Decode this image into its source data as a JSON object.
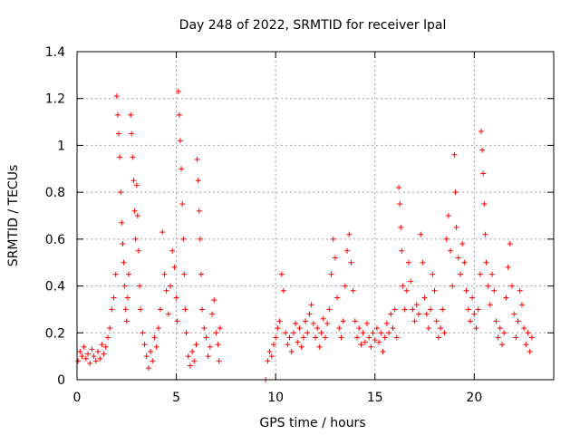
{
  "chart_data": {
    "type": "scatter",
    "title": "Day 248 of 2022, SRMTID for receiver lpal",
    "xlabel": "GPS time / hours",
    "ylabel": "SRMTID / TECUs",
    "xlim": [
      0,
      24
    ],
    "ylim": [
      0,
      1.4
    ],
    "xticks": [
      0,
      5,
      10,
      15,
      20
    ],
    "yticks": [
      0,
      0.2,
      0.4,
      0.6,
      0.8,
      1,
      1.2,
      1.4
    ],
    "xtick_labels": [
      "0",
      "5",
      "10",
      "15",
      "20"
    ],
    "ytick_labels": [
      "0",
      "0.2",
      "0.4",
      "0.6",
      "0.8",
      "1",
      "1.2",
      "1.4"
    ],
    "grid": true,
    "marker": "plus",
    "series": [
      {
        "name": "SRMTID",
        "color": "#ff0000",
        "points": [
          [
            0.05,
            0.08
          ],
          [
            0.15,
            0.12
          ],
          [
            0.25,
            0.1
          ],
          [
            0.35,
            0.14
          ],
          [
            0.45,
            0.09
          ],
          [
            0.55,
            0.11
          ],
          [
            0.65,
            0.07
          ],
          [
            0.75,
            0.13
          ],
          [
            0.85,
            0.1
          ],
          [
            0.95,
            0.08
          ],
          [
            1.05,
            0.12
          ],
          [
            1.15,
            0.09
          ],
          [
            1.25,
            0.15
          ],
          [
            1.35,
            0.11
          ],
          [
            1.45,
            0.14
          ],
          [
            1.55,
            0.18
          ],
          [
            1.65,
            0.22
          ],
          [
            1.75,
            0.3
          ],
          [
            1.85,
            0.35
          ],
          [
            1.95,
            0.45
          ],
          [
            2.0,
            1.21
          ],
          [
            2.05,
            1.13
          ],
          [
            2.1,
            1.05
          ],
          [
            2.15,
            0.95
          ],
          [
            2.2,
            0.8
          ],
          [
            2.25,
            0.67
          ],
          [
            2.3,
            0.58
          ],
          [
            2.35,
            0.5
          ],
          [
            2.4,
            0.4
          ],
          [
            2.45,
            0.3
          ],
          [
            2.5,
            0.25
          ],
          [
            2.55,
            0.35
          ],
          [
            2.6,
            0.45
          ],
          [
            2.7,
            1.13
          ],
          [
            2.75,
            1.05
          ],
          [
            2.8,
            0.95
          ],
          [
            2.85,
            0.85
          ],
          [
            2.9,
            0.72
          ],
          [
            2.95,
            0.6
          ],
          [
            3.0,
            0.83
          ],
          [
            3.05,
            0.7
          ],
          [
            3.1,
            0.55
          ],
          [
            3.15,
            0.4
          ],
          [
            3.2,
            0.3
          ],
          [
            3.3,
            0.2
          ],
          [
            3.4,
            0.15
          ],
          [
            3.5,
            0.1
          ],
          [
            3.6,
            0.05
          ],
          [
            3.7,
            0.12
          ],
          [
            3.8,
            0.08
          ],
          [
            3.9,
            0.18
          ],
          [
            4.0,
            0.14
          ],
          [
            4.1,
            0.22
          ],
          [
            4.2,
            0.3
          ],
          [
            4.3,
            0.63
          ],
          [
            4.4,
            0.45
          ],
          [
            4.5,
            0.38
          ],
          [
            4.6,
            0.28
          ],
          [
            4.7,
            0.4
          ],
          [
            4.8,
            0.55
          ],
          [
            4.9,
            0.48
          ],
          [
            5.0,
            0.35
          ],
          [
            5.05,
            0.25
          ],
          [
            5.1,
            1.23
          ],
          [
            5.15,
            1.13
          ],
          [
            5.2,
            1.02
          ],
          [
            5.25,
            0.9
          ],
          [
            5.3,
            0.75
          ],
          [
            5.35,
            0.6
          ],
          [
            5.4,
            0.45
          ],
          [
            5.45,
            0.3
          ],
          [
            5.5,
            0.2
          ],
          [
            5.6,
            0.1
          ],
          [
            5.7,
            0.06
          ],
          [
            5.8,
            0.12
          ],
          [
            5.9,
            0.08
          ],
          [
            6.0,
            0.15
          ],
          [
            6.05,
            0.94
          ],
          [
            6.1,
            0.85
          ],
          [
            6.15,
            0.72
          ],
          [
            6.2,
            0.6
          ],
          [
            6.25,
            0.45
          ],
          [
            6.3,
            0.3
          ],
          [
            6.4,
            0.22
          ],
          [
            6.5,
            0.18
          ],
          [
            6.6,
            0.1
          ],
          [
            6.7,
            0.14
          ],
          [
            6.8,
            0.28
          ],
          [
            6.9,
            0.34
          ],
          [
            7.0,
            0.2
          ],
          [
            7.1,
            0.15
          ],
          [
            7.15,
            0.08
          ],
          [
            7.2,
            0.22
          ],
          [
            9.5,
            0.0
          ],
          [
            9.6,
            0.08
          ],
          [
            9.7,
            0.12
          ],
          [
            9.8,
            0.1
          ],
          [
            9.9,
            0.15
          ],
          [
            10.0,
            0.18
          ],
          [
            10.1,
            0.22
          ],
          [
            10.2,
            0.25
          ],
          [
            10.3,
            0.45
          ],
          [
            10.4,
            0.38
          ],
          [
            10.5,
            0.2
          ],
          [
            10.6,
            0.15
          ],
          [
            10.7,
            0.18
          ],
          [
            10.8,
            0.12
          ],
          [
            10.9,
            0.2
          ],
          [
            11.0,
            0.24
          ],
          [
            11.1,
            0.16
          ],
          [
            11.2,
            0.22
          ],
          [
            11.3,
            0.14
          ],
          [
            11.4,
            0.18
          ],
          [
            11.5,
            0.25
          ],
          [
            11.6,
            0.2
          ],
          [
            11.7,
            0.28
          ],
          [
            11.8,
            0.32
          ],
          [
            11.9,
            0.24
          ],
          [
            12.0,
            0.18
          ],
          [
            12.1,
            0.22
          ],
          [
            12.2,
            0.14
          ],
          [
            12.3,
            0.2
          ],
          [
            12.4,
            0.26
          ],
          [
            12.5,
            0.18
          ],
          [
            12.6,
            0.24
          ],
          [
            12.7,
            0.3
          ],
          [
            12.8,
            0.45
          ],
          [
            12.9,
            0.6
          ],
          [
            13.0,
            0.52
          ],
          [
            13.1,
            0.35
          ],
          [
            13.2,
            0.22
          ],
          [
            13.3,
            0.18
          ],
          [
            13.4,
            0.25
          ],
          [
            13.5,
            0.4
          ],
          [
            13.6,
            0.55
          ],
          [
            13.7,
            0.62
          ],
          [
            13.8,
            0.5
          ],
          [
            13.9,
            0.38
          ],
          [
            14.0,
            0.25
          ],
          [
            14.1,
            0.18
          ],
          [
            14.2,
            0.22
          ],
          [
            14.3,
            0.15
          ],
          [
            14.4,
            0.2
          ],
          [
            14.5,
            0.16
          ],
          [
            14.6,
            0.24
          ],
          [
            14.7,
            0.18
          ],
          [
            14.8,
            0.14
          ],
          [
            14.9,
            0.2
          ],
          [
            15.0,
            0.17
          ],
          [
            15.1,
            0.22
          ],
          [
            15.2,
            0.16
          ],
          [
            15.3,
            0.2
          ],
          [
            15.4,
            0.12
          ],
          [
            15.5,
            0.18
          ],
          [
            15.6,
            0.24
          ],
          [
            15.7,
            0.2
          ],
          [
            15.8,
            0.28
          ],
          [
            15.9,
            0.22
          ],
          [
            16.0,
            0.3
          ],
          [
            16.1,
            0.18
          ],
          [
            16.2,
            0.82
          ],
          [
            16.25,
            0.75
          ],
          [
            16.3,
            0.65
          ],
          [
            16.35,
            0.55
          ],
          [
            16.4,
            0.4
          ],
          [
            16.5,
            0.3
          ],
          [
            16.6,
            0.38
          ],
          [
            16.7,
            0.5
          ],
          [
            16.8,
            0.42
          ],
          [
            16.9,
            0.3
          ],
          [
            17.0,
            0.25
          ],
          [
            17.1,
            0.32
          ],
          [
            17.2,
            0.28
          ],
          [
            17.3,
            0.62
          ],
          [
            17.4,
            0.5
          ],
          [
            17.5,
            0.35
          ],
          [
            17.6,
            0.28
          ],
          [
            17.7,
            0.22
          ],
          [
            17.8,
            0.3
          ],
          [
            17.9,
            0.45
          ],
          [
            18.0,
            0.38
          ],
          [
            18.1,
            0.25
          ],
          [
            18.2,
            0.18
          ],
          [
            18.3,
            0.22
          ],
          [
            18.4,
            0.3
          ],
          [
            18.5,
            0.2
          ],
          [
            18.6,
            0.6
          ],
          [
            18.7,
            0.7
          ],
          [
            18.8,
            0.55
          ],
          [
            18.9,
            0.4
          ],
          [
            19.0,
            0.96
          ],
          [
            19.05,
            0.8
          ],
          [
            19.1,
            0.65
          ],
          [
            19.2,
            0.52
          ],
          [
            19.3,
            0.45
          ],
          [
            19.4,
            0.58
          ],
          [
            19.5,
            0.5
          ],
          [
            19.6,
            0.38
          ],
          [
            19.7,
            0.3
          ],
          [
            19.8,
            0.25
          ],
          [
            19.9,
            0.35
          ],
          [
            20.0,
            0.28
          ],
          [
            20.1,
            0.22
          ],
          [
            20.2,
            0.3
          ],
          [
            20.3,
            0.45
          ],
          [
            20.35,
            1.06
          ],
          [
            20.4,
            0.98
          ],
          [
            20.45,
            0.88
          ],
          [
            20.5,
            0.75
          ],
          [
            20.55,
            0.62
          ],
          [
            20.6,
            0.5
          ],
          [
            20.7,
            0.4
          ],
          [
            20.8,
            0.32
          ],
          [
            20.9,
            0.45
          ],
          [
            21.0,
            0.38
          ],
          [
            21.1,
            0.25
          ],
          [
            21.2,
            0.18
          ],
          [
            21.3,
            0.22
          ],
          [
            21.4,
            0.15
          ],
          [
            21.5,
            0.2
          ],
          [
            21.6,
            0.35
          ],
          [
            21.7,
            0.48
          ],
          [
            21.8,
            0.58
          ],
          [
            21.9,
            0.4
          ],
          [
            22.0,
            0.28
          ],
          [
            22.1,
            0.18
          ],
          [
            22.2,
            0.25
          ],
          [
            22.3,
            0.38
          ],
          [
            22.4,
            0.32
          ],
          [
            22.5,
            0.22
          ],
          [
            22.6,
            0.15
          ],
          [
            22.7,
            0.2
          ],
          [
            22.8,
            0.12
          ],
          [
            22.9,
            0.18
          ]
        ]
      }
    ]
  }
}
